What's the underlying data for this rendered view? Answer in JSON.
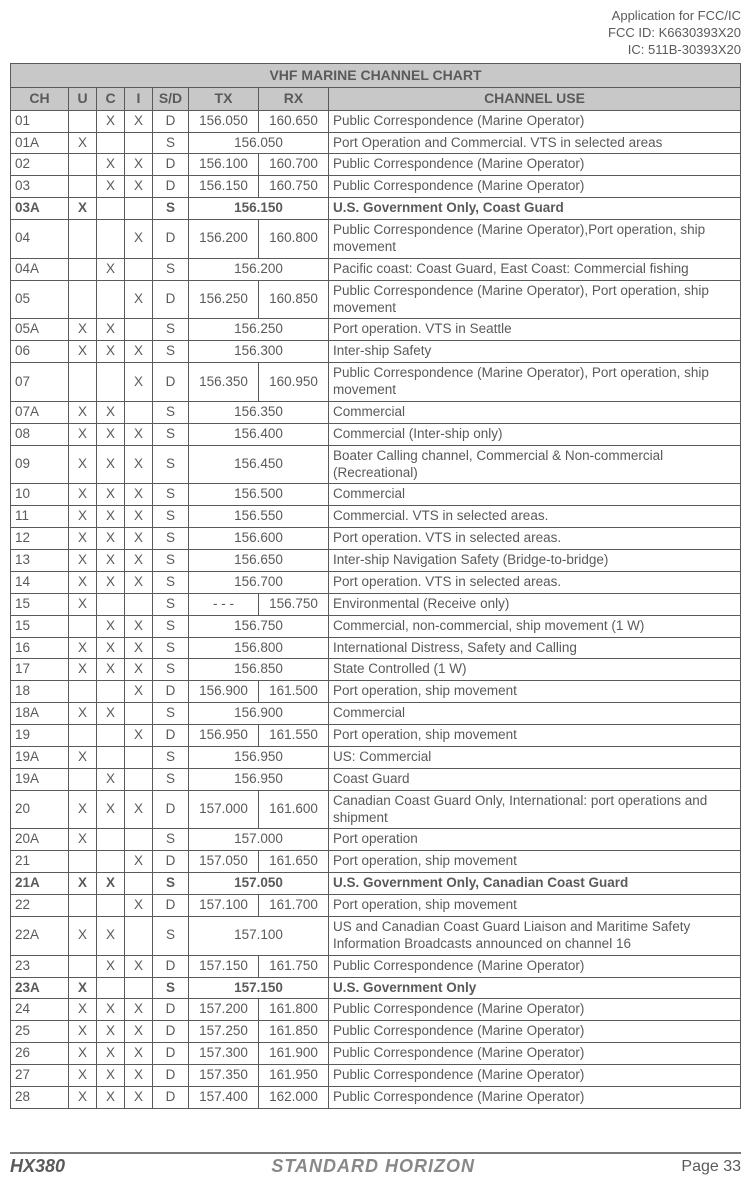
{
  "header": {
    "line1": "Application for FCC/IC",
    "line2": "FCC ID: K6630393X20",
    "line3": "IC: 511B-30393X20"
  },
  "table": {
    "title": "VHF MARINE CHANNEL CHART",
    "headers": {
      "ch": "CH",
      "u": "U",
      "c": "C",
      "i": "I",
      "sd": "S/D",
      "tx": "TX",
      "rx": "RX",
      "use": "CHANNEL USE"
    },
    "rows": [
      {
        "ch": "01",
        "u": "",
        "c": "X",
        "i": "X",
        "sd": "D",
        "tx": "156.050",
        "rx": "160.650",
        "use": "Public Correspondence (Marine Operator)"
      },
      {
        "ch": "01A",
        "u": "X",
        "c": "",
        "i": "",
        "sd": "S",
        "tx": "156.050",
        "span": true,
        "use": "Port Operation and Commercial. VTS in selected areas"
      },
      {
        "ch": "02",
        "u": "",
        "c": "X",
        "i": "X",
        "sd": "D",
        "tx": "156.100",
        "rx": "160.700",
        "use": "Public Correspondence (Marine Operator)"
      },
      {
        "ch": "03",
        "u": "",
        "c": "X",
        "i": "X",
        "sd": "D",
        "tx": "156.150",
        "rx": "160.750",
        "use": "Public Correspondence (Marine Operator)"
      },
      {
        "ch": "03A",
        "u": "X",
        "c": "",
        "i": "",
        "sd": "S",
        "tx": "156.150",
        "span": true,
        "use": "U.S. Government Only, Coast Guard",
        "bold": true
      },
      {
        "ch": "04",
        "u": "",
        "c": "",
        "i": "X",
        "sd": "D",
        "tx": "156.200",
        "rx": "160.800",
        "use": "Public Correspondence (Marine Operator),Port operation, ship movement"
      },
      {
        "ch": "04A",
        "u": "",
        "c": "X",
        "i": "",
        "sd": "S",
        "tx": "156.200",
        "span": true,
        "use": "Pacific coast: Coast Guard, East Coast: Commercial fishing"
      },
      {
        "ch": "05",
        "u": "",
        "c": "",
        "i": "X",
        "sd": "D",
        "tx": "156.250",
        "rx": "160.850",
        "use": "Public Correspondence (Marine Operator), Port operation, ship movement"
      },
      {
        "ch": "05A",
        "u": "X",
        "c": "X",
        "i": "",
        "sd": "S",
        "tx": "156.250",
        "span": true,
        "use": "Port operation. VTS in Seattle"
      },
      {
        "ch": "06",
        "u": "X",
        "c": "X",
        "i": "X",
        "sd": "S",
        "tx": "156.300",
        "span": true,
        "use": "Inter-ship Safety"
      },
      {
        "ch": "07",
        "u": "",
        "c": "",
        "i": "X",
        "sd": "D",
        "tx": "156.350",
        "rx": "160.950",
        "use": "Public Correspondence (Marine Operator), Port operation, ship movement"
      },
      {
        "ch": "07A",
        "u": "X",
        "c": "X",
        "i": "",
        "sd": "S",
        "tx": "156.350",
        "span": true,
        "use": "Commercial"
      },
      {
        "ch": "08",
        "u": "X",
        "c": "X",
        "i": "X",
        "sd": "S",
        "tx": "156.400",
        "span": true,
        "use": "Commercial (Inter-ship only)"
      },
      {
        "ch": "09",
        "u": "X",
        "c": "X",
        "i": "X",
        "sd": "S",
        "tx": "156.450",
        "span": true,
        "use": "Boater Calling channel, Commercial & Non-commercial (Recreational)"
      },
      {
        "ch": "10",
        "u": "X",
        "c": "X",
        "i": "X",
        "sd": "S",
        "tx": "156.500",
        "span": true,
        "use": "Commercial"
      },
      {
        "ch": "11",
        "u": "X",
        "c": "X",
        "i": "X",
        "sd": "S",
        "tx": "156.550",
        "span": true,
        "use": "Commercial. VTS in selected areas."
      },
      {
        "ch": "12",
        "u": "X",
        "c": "X",
        "i": "X",
        "sd": "S",
        "tx": "156.600",
        "span": true,
        "use": "Port operation. VTS in selected areas."
      },
      {
        "ch": "13",
        "u": "X",
        "c": "X",
        "i": "X",
        "sd": "S",
        "tx": "156.650",
        "span": true,
        "use": "Inter-ship Navigation Safety (Bridge-to-bridge)"
      },
      {
        "ch": "14",
        "u": "X",
        "c": "X",
        "i": "X",
        "sd": "S",
        "tx": "156.700",
        "span": true,
        "use": "Port operation. VTS in selected areas."
      },
      {
        "ch": "15",
        "u": "X",
        "c": "",
        "i": "",
        "sd": "S",
        "tx": "- - -",
        "rx": "156.750",
        "use": "Environmental (Receive only)"
      },
      {
        "ch": "15",
        "u": "",
        "c": "X",
        "i": "X",
        "sd": "S",
        "tx": "156.750",
        "span": true,
        "use": "Commercial, non-commercial, ship movement (1 W)"
      },
      {
        "ch": "16",
        "u": "X",
        "c": "X",
        "i": "X",
        "sd": "S",
        "tx": "156.800",
        "span": true,
        "use": "International Distress, Safety and Calling"
      },
      {
        "ch": "17",
        "u": "X",
        "c": "X",
        "i": "X",
        "sd": "S",
        "tx": "156.850",
        "span": true,
        "use": "State Controlled (1 W)"
      },
      {
        "ch": "18",
        "u": "",
        "c": "",
        "i": "X",
        "sd": "D",
        "tx": "156.900",
        "rx": "161.500",
        "use": "Port operation, ship movement"
      },
      {
        "ch": "18A",
        "u": "X",
        "c": "X",
        "i": "",
        "sd": "S",
        "tx": "156.900",
        "span": true,
        "use": "Commercial"
      },
      {
        "ch": "19",
        "u": "",
        "c": "",
        "i": "X",
        "sd": "D",
        "tx": "156.950",
        "rx": "161.550",
        "use": "Port operation, ship movement"
      },
      {
        "ch": "19A",
        "u": "X",
        "c": "",
        "i": "",
        "sd": "S",
        "tx": "156.950",
        "span": true,
        "use": "US: Commercial"
      },
      {
        "ch": "19A",
        "u": "",
        "c": "X",
        "i": "",
        "sd": "S",
        "tx": "156.950",
        "span": true,
        "use": "Coast Guard"
      },
      {
        "ch": "20",
        "u": "X",
        "c": "X",
        "i": "X",
        "sd": "D",
        "tx": "157.000",
        "rx": "161.600",
        "use": "Canadian Coast Guard Only, International: port operations and shipment"
      },
      {
        "ch": "20A",
        "u": "X",
        "c": "",
        "i": "",
        "sd": "S",
        "tx": "157.000",
        "span": true,
        "use": "Port operation"
      },
      {
        "ch": "21",
        "u": "",
        "c": "",
        "i": "X",
        "sd": "D",
        "tx": "157.050",
        "rx": "161.650",
        "use": "Port operation, ship movement"
      },
      {
        "ch": "21A",
        "u": "X",
        "c": "X",
        "i": "",
        "sd": "S",
        "tx": "157.050",
        "span": true,
        "use": "U.S. Government Only, Canadian Coast Guard",
        "bold": true
      },
      {
        "ch": "22",
        "u": "",
        "c": "",
        "i": "X",
        "sd": "D",
        "tx": "157.100",
        "rx": "161.700",
        "use": "Port operation, ship movement"
      },
      {
        "ch": "22A",
        "u": "X",
        "c": "X",
        "i": "",
        "sd": "S",
        "tx": "157.100",
        "span": true,
        "use": "US and Canadian Coast Guard Liaison and Maritime Safety Information Broadcasts announced on channel 16"
      },
      {
        "ch": "23",
        "u": "",
        "c": "X",
        "i": "X",
        "sd": "D",
        "tx": "157.150",
        "rx": "161.750",
        "use": "Public Correspondence (Marine Operator)"
      },
      {
        "ch": "23A",
        "u": "X",
        "c": "",
        "i": "",
        "sd": "S",
        "tx": "157.150",
        "span": true,
        "use": "U.S. Government Only",
        "bold": true
      },
      {
        "ch": "24",
        "u": "X",
        "c": "X",
        "i": "X",
        "sd": "D",
        "tx": "157.200",
        "rx": "161.800",
        "use": "Public Correspondence (Marine Operator)"
      },
      {
        "ch": "25",
        "u": "X",
        "c": "X",
        "i": "X",
        "sd": "D",
        "tx": "157.250",
        "rx": "161.850",
        "use": "Public Correspondence (Marine Operator)"
      },
      {
        "ch": "26",
        "u": "X",
        "c": "X",
        "i": "X",
        "sd": "D",
        "tx": "157.300",
        "rx": "161.900",
        "use": "Public Correspondence (Marine Operator)"
      },
      {
        "ch": "27",
        "u": "X",
        "c": "X",
        "i": "X",
        "sd": "D",
        "tx": "157.350",
        "rx": "161.950",
        "use": "Public Correspondence (Marine Operator)"
      },
      {
        "ch": "28",
        "u": "X",
        "c": "X",
        "i": "X",
        "sd": "D",
        "tx": "157.400",
        "rx": "162.000",
        "use": "Public Correspondence (Marine Operator)"
      }
    ]
  },
  "footer": {
    "model": "HX380",
    "brand": "STANDARD HORIZON",
    "page": "Page 33"
  }
}
